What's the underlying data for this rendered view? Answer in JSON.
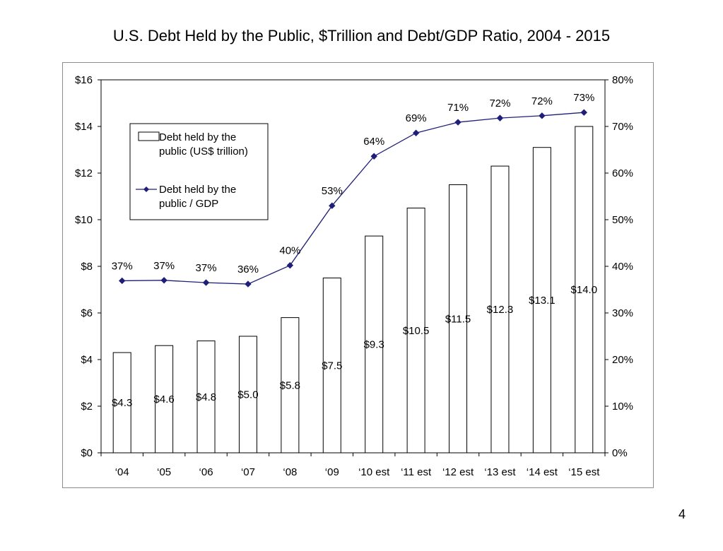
{
  "slide": {
    "title": "U.S. Debt Held by the Public, $Trillion and Debt/GDP Ratio, 2004 - 2015",
    "page_number": "4"
  },
  "chart_data": {
    "type": "bar",
    "title": "U.S. Debt Held by the Public, $Trillion and Debt/GDP Ratio, 2004 - 2015",
    "categories": [
      "‘04",
      "‘05",
      "‘06",
      "‘07",
      "‘08",
      "‘09",
      "‘10 est",
      "‘11 est",
      "‘12 est",
      "‘13 est",
      "‘14 est",
      "‘15 est"
    ],
    "left_axis": {
      "ylim": [
        0,
        16
      ],
      "ticks": [
        0,
        2,
        4,
        6,
        8,
        10,
        12,
        14,
        16
      ],
      "tick_labels": [
        "$0",
        "$2",
        "$4",
        "$6",
        "$8",
        "$10",
        "$12",
        "$14",
        "$16"
      ]
    },
    "right_axis": {
      "ylim": [
        0,
        80
      ],
      "ticks": [
        0,
        10,
        20,
        30,
        40,
        50,
        60,
        70,
        80
      ],
      "tick_labels": [
        "0%",
        "10%",
        "20%",
        "30%",
        "40%",
        "50%",
        "60%",
        "70%",
        "80%"
      ]
    },
    "series": [
      {
        "name": "Debt held by the public (US$ trillion)",
        "type": "bar",
        "axis": "left",
        "values": [
          4.3,
          4.6,
          4.8,
          5.0,
          5.8,
          7.5,
          9.3,
          10.5,
          11.5,
          12.3,
          13.1,
          14.0
        ],
        "labels": [
          "$4.3",
          "$4.6",
          "$4.8",
          "$5.0",
          "$5.8",
          "$7.5",
          "$9.3",
          "$10.5",
          "$11.5",
          "$12.3",
          "$13.1",
          "$14.0"
        ],
        "fill": "#ffffff",
        "stroke": "#000000"
      },
      {
        "name": "Debt held by the public / GDP",
        "type": "line",
        "axis": "right",
        "values": [
          36.9,
          37.0,
          36.5,
          36.2,
          40.2,
          53.0,
          63.6,
          68.6,
          70.9,
          71.8,
          72.3,
          73.0
        ],
        "labels": [
          "37%",
          "37%",
          "37%",
          "36%",
          "40%",
          "53%",
          "64%",
          "69%",
          "71%",
          "72%",
          "72%",
          "73%"
        ],
        "color": "#1f1f7a"
      }
    ],
    "legend": {
      "position": "top-left",
      "entries": [
        {
          "line1": "Debt held by the",
          "line2": "public (US$ trillion)"
        },
        {
          "line1": "Debt held by the",
          "line2": "public / GDP"
        }
      ]
    },
    "grid": false
  }
}
